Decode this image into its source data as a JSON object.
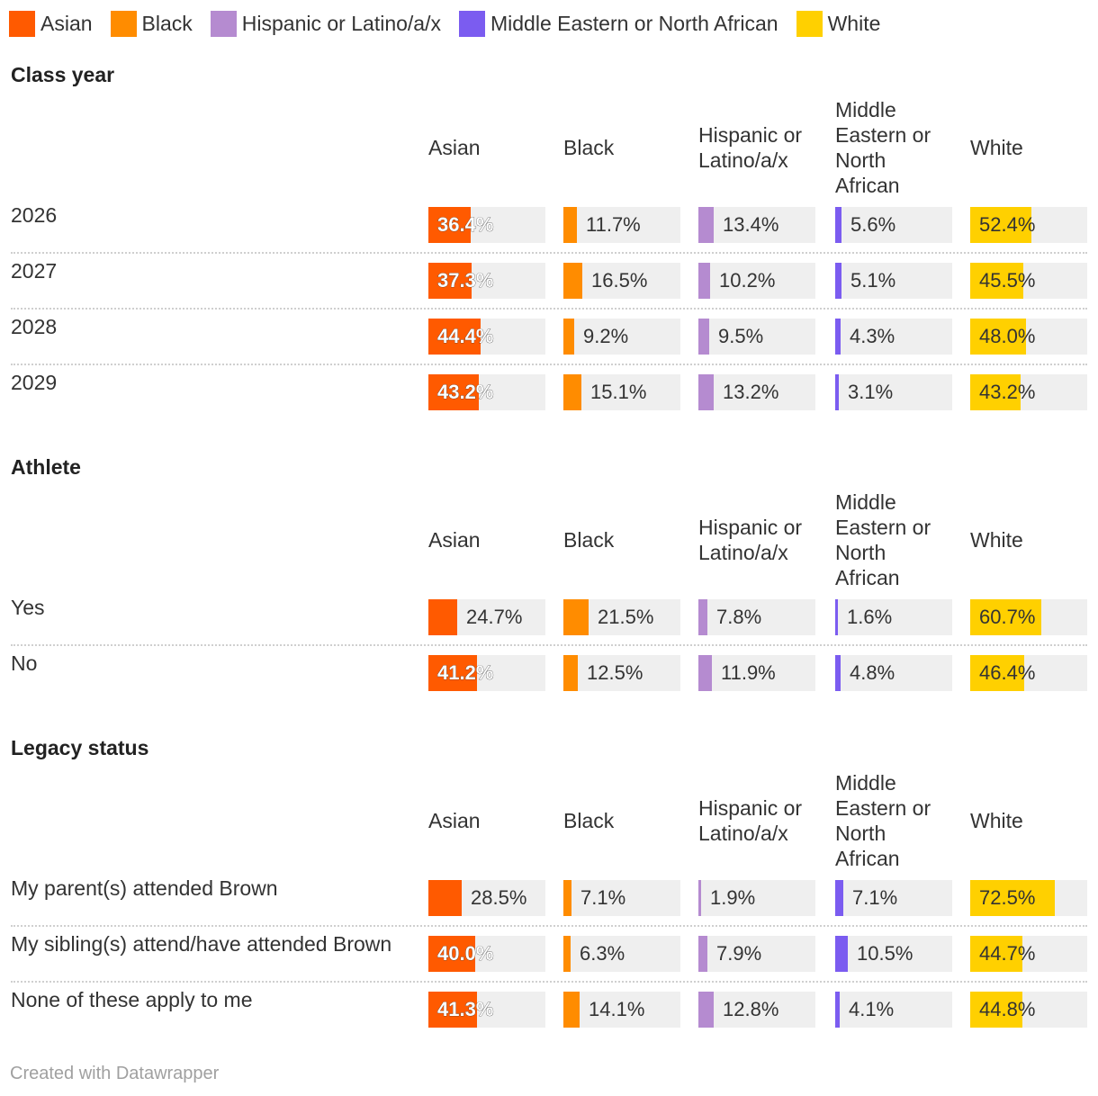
{
  "chart_data": {
    "type": "bar",
    "legend": [
      {
        "name": "Asian",
        "color": "#ff5a00"
      },
      {
        "name": "Black",
        "color": "#ff8c00"
      },
      {
        "name": "Hispanic or Latino/a/x",
        "color": "#b58bd0"
      },
      {
        "name": "Middle Eastern or North African",
        "color": "#7b5cf0"
      },
      {
        "name": "White",
        "color": "#ffd000"
      }
    ],
    "columns": [
      {
        "label_lines": [
          "Asian"
        ],
        "color": "#ff5a00"
      },
      {
        "label_lines": [
          "Black"
        ],
        "color": "#ff8c00"
      },
      {
        "label_lines": [
          "Hispanic or",
          "Latino/a/x"
        ],
        "color": "#b58bd0"
      },
      {
        "label_lines": [
          "Middle",
          "Eastern or",
          "North",
          "African"
        ],
        "color": "#7b5cf0"
      },
      {
        "label_lines": [
          "White"
        ],
        "color": "#ffd000"
      }
    ],
    "value_max": 100,
    "sections": [
      {
        "title": "Class year",
        "rows": [
          {
            "label": "2026",
            "values": [
              36.4,
              11.7,
              13.4,
              5.6,
              52.4
            ],
            "labels": [
              "36.4%",
              "11.7%",
              "13.4%",
              "5.6%",
              "52.4%"
            ]
          },
          {
            "label": "2027",
            "values": [
              37.3,
              16.5,
              10.2,
              5.1,
              45.5
            ],
            "labels": [
              "37.3%",
              "16.5%",
              "10.2%",
              "5.1%",
              "45.5%"
            ]
          },
          {
            "label": "2028",
            "values": [
              44.4,
              9.2,
              9.5,
              4.3,
              48.0
            ],
            "labels": [
              "44.4%",
              "9.2%",
              "9.5%",
              "4.3%",
              "48.0%"
            ]
          },
          {
            "label": "2029",
            "values": [
              43.2,
              15.1,
              13.2,
              3.1,
              43.2
            ],
            "labels": [
              "43.2%",
              "15.1%",
              "13.2%",
              "3.1%",
              "43.2%"
            ]
          }
        ]
      },
      {
        "title": "Athlete",
        "rows": [
          {
            "label": "Yes",
            "values": [
              24.7,
              21.5,
              7.8,
              1.6,
              60.7
            ],
            "labels": [
              "24.7%",
              "21.5%",
              "7.8%",
              "1.6%",
              "60.7%"
            ]
          },
          {
            "label": "No",
            "values": [
              41.2,
              12.5,
              11.9,
              4.8,
              46.4
            ],
            "labels": [
              "41.2%",
              "12.5%",
              "11.9%",
              "4.8%",
              "46.4%"
            ]
          }
        ]
      },
      {
        "title": "Legacy status",
        "rows": [
          {
            "label": "My parent(s) attended Brown",
            "values": [
              28.5,
              7.1,
              1.9,
              7.1,
              72.5
            ],
            "labels": [
              "28.5%",
              "7.1%",
              "1.9%",
              "7.1%",
              "72.5%"
            ]
          },
          {
            "label": "My sibling(s) attend/have attended Brown",
            "values": [
              40.0,
              6.3,
              7.9,
              10.5,
              44.7
            ],
            "labels": [
              "40.0%",
              "6.3%",
              "7.9%",
              "10.5%",
              "44.7%"
            ]
          },
          {
            "label": "None of these apply to me",
            "values": [
              41.3,
              14.1,
              12.8,
              4.1,
              44.8
            ],
            "labels": [
              "41.3%",
              "14.1%",
              "12.8%",
              "4.1%",
              "44.8%"
            ]
          }
        ]
      }
    ]
  },
  "footer": "Created with Datawrapper"
}
